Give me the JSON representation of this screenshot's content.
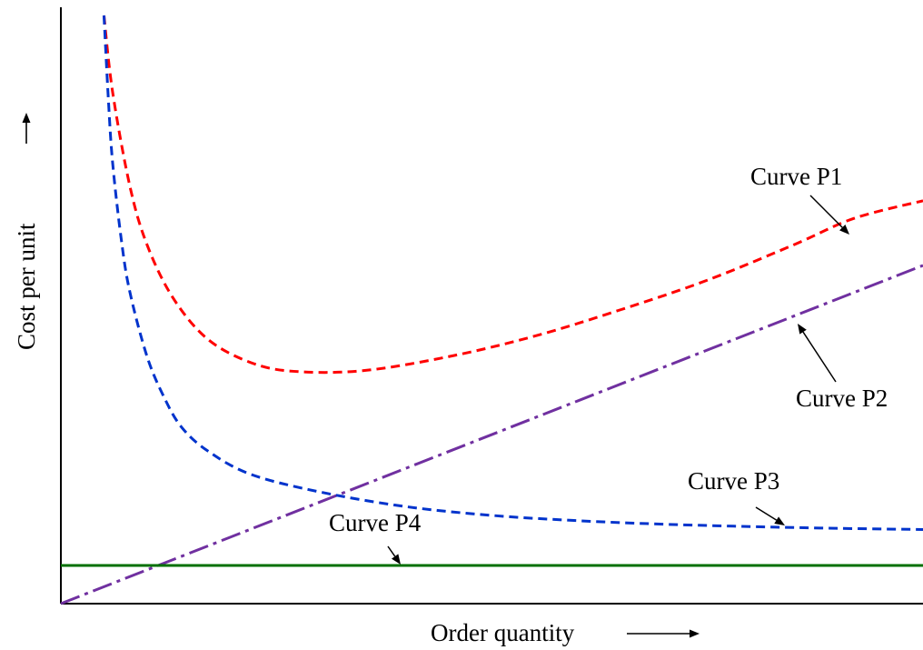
{
  "chart_data": {
    "type": "line",
    "xlabel": "Order quantity",
    "ylabel": "Cost per unit",
    "xlim": [
      0,
      100
    ],
    "ylim": [
      0,
      100
    ],
    "grid": false,
    "legend": "none",
    "series": [
      {
        "name": "Curve P1",
        "color": "#ff0000",
        "style": "dashed",
        "points": [
          [
            5,
            100
          ],
          [
            6,
            87
          ],
          [
            8,
            71
          ],
          [
            10,
            61
          ],
          [
            13,
            52
          ],
          [
            17,
            45
          ],
          [
            22,
            41
          ],
          [
            27,
            39.5
          ],
          [
            35,
            39.6
          ],
          [
            45,
            42
          ],
          [
            55,
            45.5
          ],
          [
            65,
            50
          ],
          [
            75,
            55
          ],
          [
            85,
            61
          ],
          [
            92,
            65.5
          ],
          [
            100,
            68.5
          ]
        ]
      },
      {
        "name": "Curve P2",
        "color": "#7030a0",
        "style": "dash-dot",
        "points": [
          [
            0,
            0
          ],
          [
            100,
            57.5
          ]
        ]
      },
      {
        "name": "Curve P3",
        "color": "#0033cc",
        "style": "dashed",
        "points": [
          [
            5,
            100
          ],
          [
            5.5,
            86
          ],
          [
            6,
            75
          ],
          [
            7,
            62
          ],
          [
            8,
            53
          ],
          [
            10,
            42
          ],
          [
            12,
            35
          ],
          [
            14,
            30
          ],
          [
            17,
            26
          ],
          [
            22,
            22
          ],
          [
            30,
            19
          ],
          [
            40,
            16.5
          ],
          [
            50,
            15
          ],
          [
            60,
            14.1
          ],
          [
            70,
            13.5
          ],
          [
            80,
            13.1
          ],
          [
            90,
            12.8
          ],
          [
            100,
            12.6
          ]
        ]
      },
      {
        "name": "Curve P4",
        "color": "#007000",
        "style": "solid",
        "points": [
          [
            0,
            6.5
          ],
          [
            100,
            6.5
          ]
        ]
      }
    ],
    "annotations": [
      {
        "text": "Curve P1",
        "target_series": "Curve P1"
      },
      {
        "text": "Curve P2",
        "target_series": "Curve P2"
      },
      {
        "text": "Curve P3",
        "target_series": "Curve P3"
      },
      {
        "text": "Curve P4",
        "target_series": "Curve P4"
      }
    ]
  }
}
